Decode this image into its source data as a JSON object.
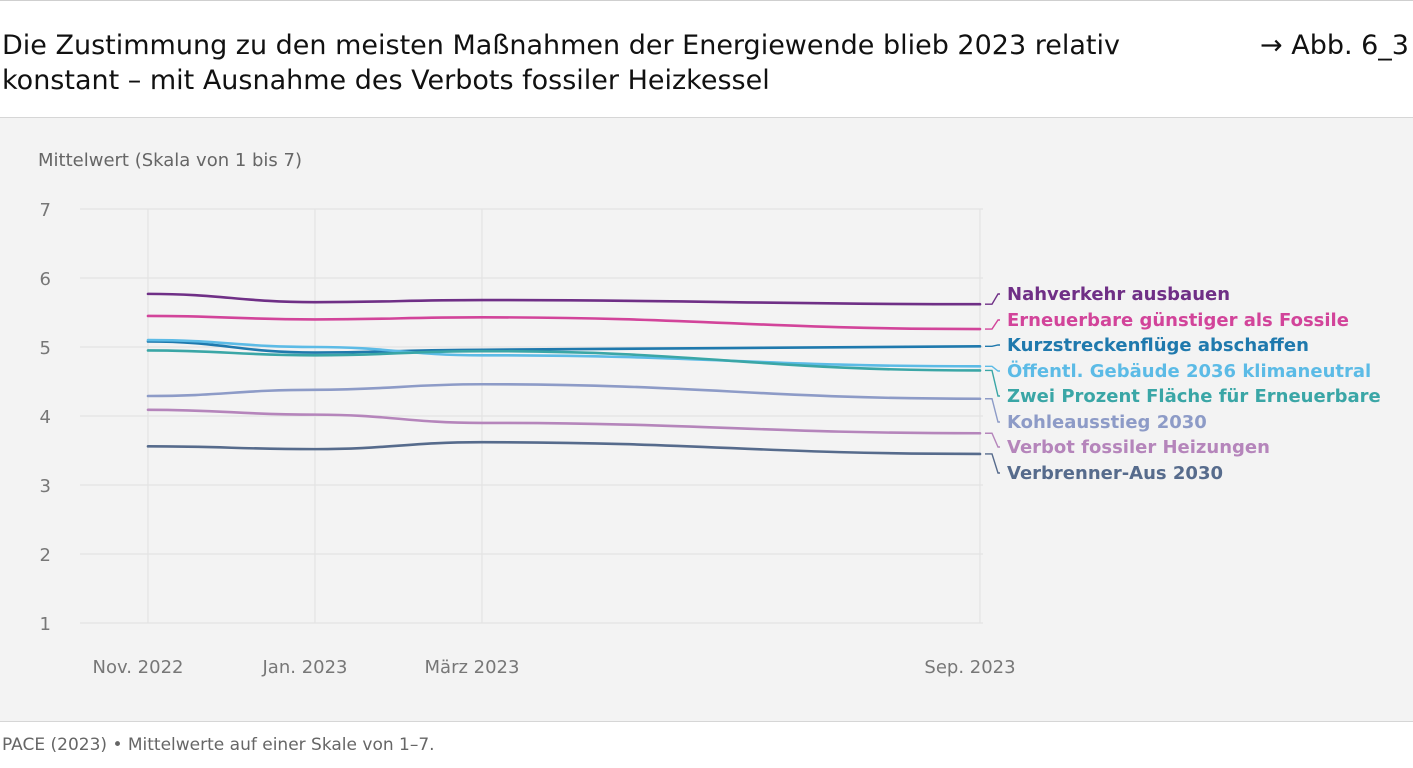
{
  "header": {
    "title": "Die Zustimmung zu den meisten Maßnahmen der Energiewende blieb 2023 relativ konstant – mit Ausnahme des Verbots fossiler Heizkessel",
    "figure_ref": "→ Abb. 6_3"
  },
  "footer": {
    "source": "PACE (2023) • Mittelwerte auf einer Skale von 1–7."
  },
  "chart_data": {
    "type": "line",
    "ylabel": "Mittelwert (Skala von 1 bis 7)",
    "xlabel": "",
    "ylim": [
      1,
      7
    ],
    "yticks": [
      "1",
      "2",
      "3",
      "4",
      "5",
      "6",
      "7"
    ],
    "x": [
      "Nov. 2022",
      "Jan. 2023",
      "März 2023",
      "Sep. 2023"
    ],
    "grid": true,
    "legend": "right, labels at line ends",
    "series": [
      {
        "name": "Nahverkehr ausbauen",
        "color": "#6f2f86",
        "values": [
          5.77,
          5.65,
          5.68,
          5.62
        ]
      },
      {
        "name": "Erneuerbare günstiger als Fossile",
        "color": "#d2449a",
        "values": [
          5.45,
          5.4,
          5.43,
          5.26
        ]
      },
      {
        "name": "Kurzstreckenflüge abschaffen",
        "color": "#1f79ad",
        "values": [
          5.08,
          4.92,
          4.96,
          5.01
        ]
      },
      {
        "name": "Öffentl. Gebäude 2036 klimaneutral",
        "color": "#5cbbe6",
        "values": [
          5.1,
          5.0,
          4.88,
          4.72
        ]
      },
      {
        "name": "Zwei Prozent Fläche für Erneuerbare",
        "color": "#3aa6a6",
        "values": [
          4.95,
          4.88,
          4.94,
          4.66
        ]
      },
      {
        "name": "Kohleausstieg 2030",
        "color": "#8d9bc7",
        "values": [
          4.29,
          4.38,
          4.46,
          4.25
        ]
      },
      {
        "name": "Verbot fossiler Heizungen",
        "color": "#b585bb",
        "values": [
          4.09,
          4.02,
          3.9,
          3.75
        ]
      },
      {
        "name": "Verbrenner-Aus 2030",
        "color": "#566b8c",
        "values": [
          3.56,
          3.52,
          3.62,
          3.45
        ]
      }
    ]
  }
}
